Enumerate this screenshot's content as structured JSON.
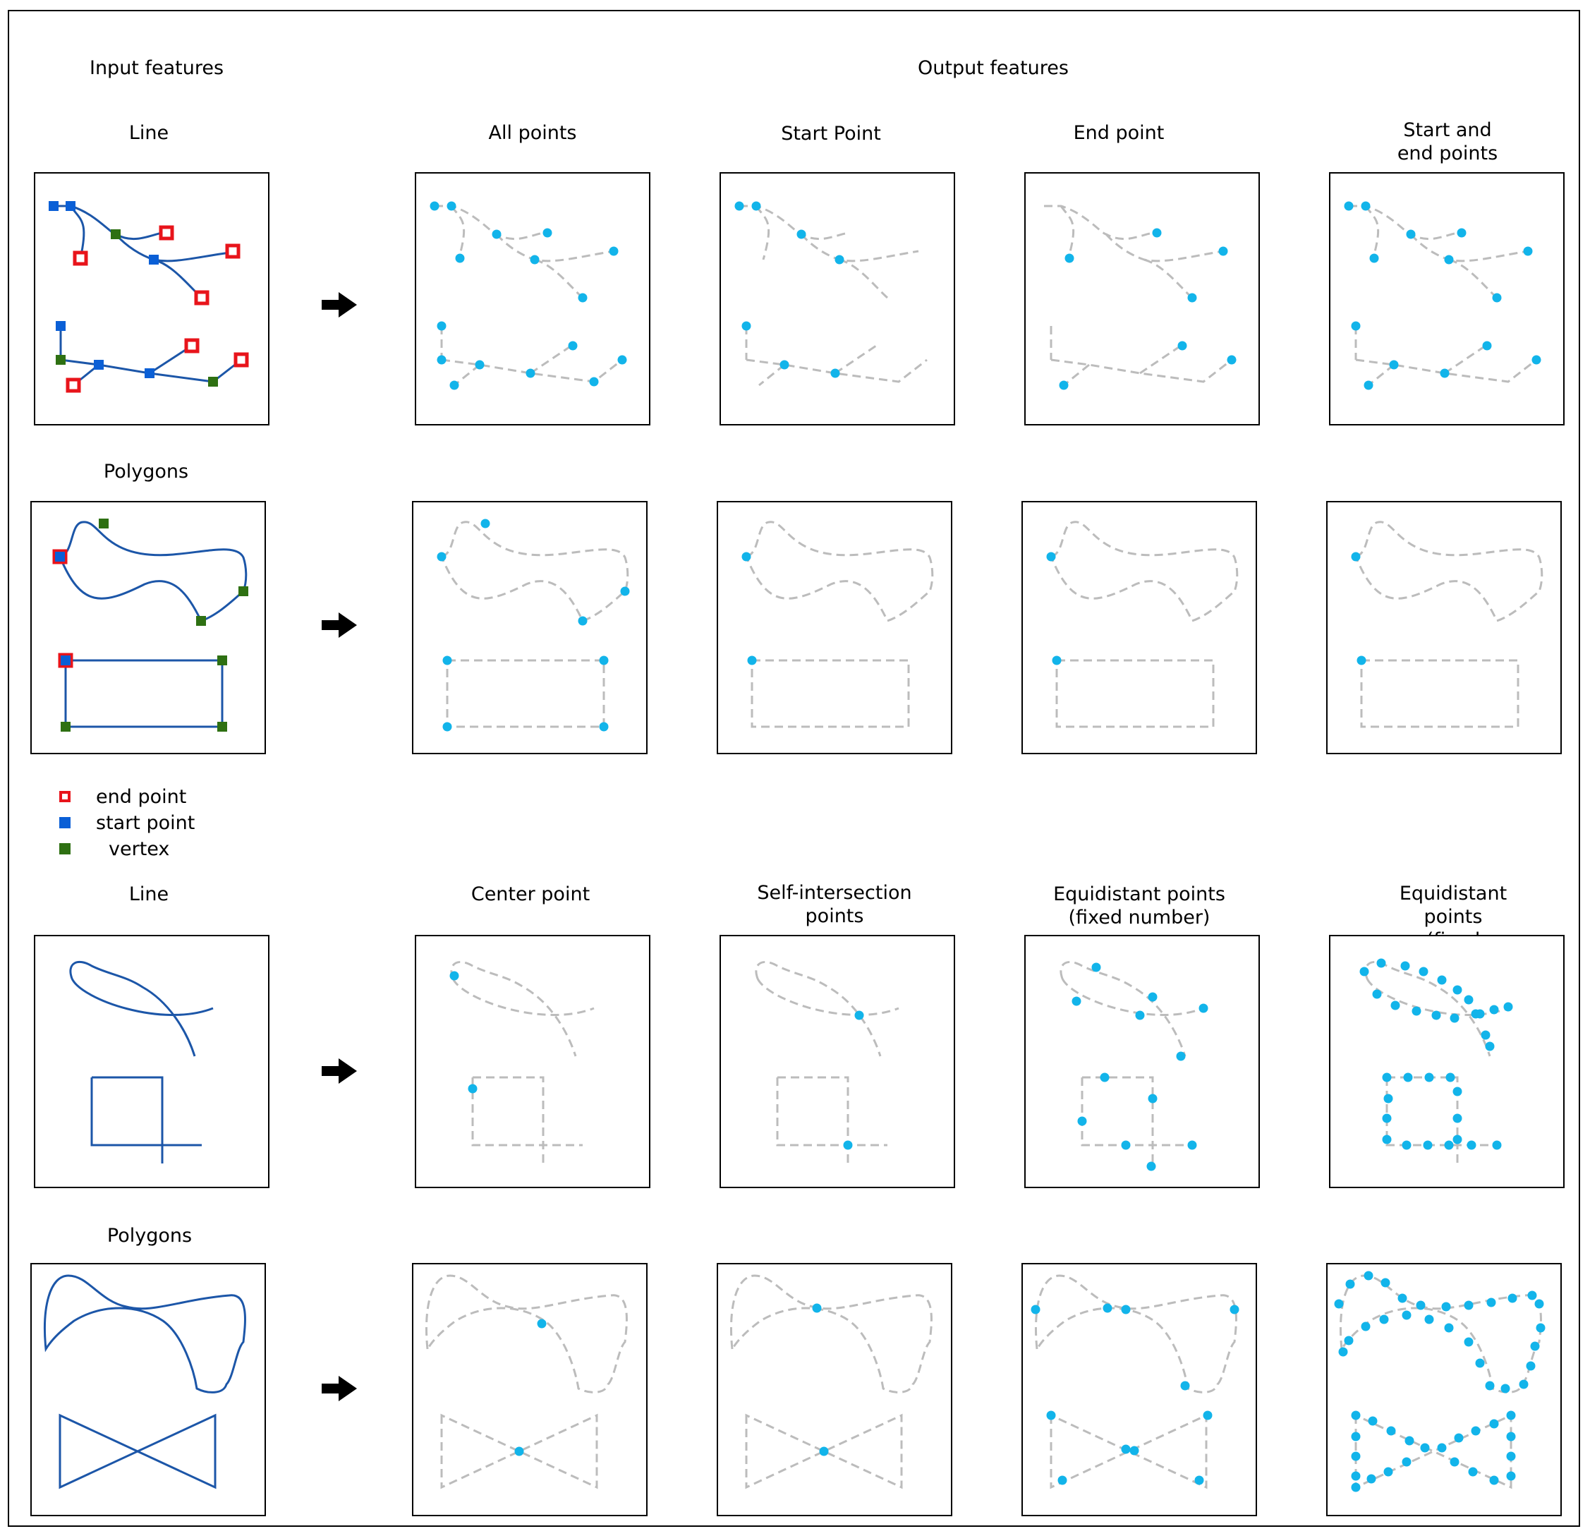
{
  "headings": {
    "input_features": "Input features",
    "output_features": "Output features"
  },
  "section1": {
    "row1_input": "Line",
    "row2_input": "Polygons",
    "columns": [
      "All points",
      "Start Point",
      "End point",
      "Start and\nend points"
    ]
  },
  "section2": {
    "row1_input": "Line",
    "row2_input": "Polygons",
    "columns": [
      "Center point",
      "Self-intersection\npoints",
      "Equidistant points\n(fixed number)",
      "Equidistant points\n(fixed interval)"
    ]
  },
  "legend": [
    {
      "label": "end point",
      "marker": "red-hollow-square",
      "color": "#e8141b"
    },
    {
      "label": "start point",
      "marker": "blue-square",
      "color": "#0a5fd6"
    },
    {
      "label": "vertex",
      "marker": "green-square",
      "color": "#2e7012"
    }
  ],
  "colors": {
    "input_line": "#1c56a8",
    "output_dashed": "#bcbcbc",
    "output_point": "#12b4ea",
    "start_point": "#0a5fd6",
    "end_point": "#e8141b",
    "vertex": "#2e7012"
  },
  "icons": [
    "arrow-right-icon"
  ]
}
